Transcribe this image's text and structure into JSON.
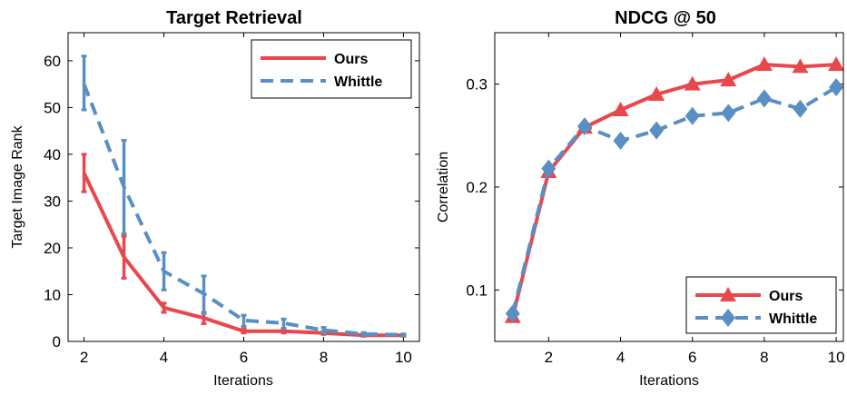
{
  "chart_data": [
    {
      "type": "line",
      "title": "Target Retrieval",
      "xlabel": "Iterations",
      "ylabel": "Target Image Rank",
      "xlim": [
        1.6,
        10.4
      ],
      "ylim": [
        0,
        66
      ],
      "xticks": [
        2,
        4,
        6,
        8,
        10
      ],
      "yticks": [
        0,
        10,
        20,
        30,
        40,
        50,
        60
      ],
      "legend_position": "top-right",
      "series": [
        {
          "name": "Ours",
          "color": "#e8474c",
          "style": "solid",
          "x": [
            2,
            3,
            4,
            5,
            6,
            7,
            8,
            9,
            10
          ],
          "values": [
            36.0,
            18.0,
            7.2,
            5.0,
            2.2,
            2.2,
            1.8,
            1.3,
            1.3
          ],
          "err_low": [
            32.0,
            13.5,
            6.2,
            3.8,
            1.8,
            1.8,
            1.5,
            1.1,
            1.1
          ],
          "err_high": [
            40.0,
            22.5,
            8.2,
            6.2,
            2.6,
            2.6,
            2.1,
            1.5,
            1.5
          ]
        },
        {
          "name": "Whittle",
          "color": "#5a8fc3",
          "style": "dashed",
          "x": [
            2,
            3,
            4,
            5,
            6,
            7,
            8,
            9,
            10
          ],
          "values": [
            55.0,
            33.0,
            15.0,
            10.2,
            4.5,
            3.9,
            2.4,
            1.6,
            1.4
          ],
          "err_low": [
            49.5,
            23.0,
            11.0,
            6.0,
            3.2,
            2.8,
            1.8,
            1.3,
            1.2
          ],
          "err_high": [
            61.0,
            43.0,
            19.0,
            14.0,
            5.6,
            4.8,
            3.0,
            1.9,
            1.6
          ]
        }
      ]
    },
    {
      "type": "line",
      "title": "NDCG @ 50",
      "xlabel": "Iterations",
      "ylabel": "Correlation",
      "xlim": [
        0.5,
        10.2
      ],
      "ylim": [
        0.05,
        0.35
      ],
      "xticks": [
        2,
        4,
        6,
        8,
        10
      ],
      "yticks": [
        0.1,
        0.2,
        0.3
      ],
      "legend_position": "bottom-right",
      "series": [
        {
          "name": "Ours",
          "color": "#e8474c",
          "style": "solid",
          "marker": "triangle",
          "x": [
            1,
            2,
            3,
            4,
            5,
            6,
            7,
            8,
            9,
            10
          ],
          "values": [
            0.074,
            0.215,
            0.258,
            0.275,
            0.29,
            0.3,
            0.304,
            0.319,
            0.317,
            0.319
          ]
        },
        {
          "name": "Whittle",
          "color": "#5a8fc3",
          "style": "dashed",
          "marker": "diamond",
          "x": [
            1,
            2,
            3,
            4,
            5,
            6,
            7,
            8,
            9,
            10
          ],
          "values": [
            0.077,
            0.218,
            0.259,
            0.245,
            0.255,
            0.269,
            0.272,
            0.286,
            0.276,
            0.297
          ]
        }
      ]
    }
  ]
}
